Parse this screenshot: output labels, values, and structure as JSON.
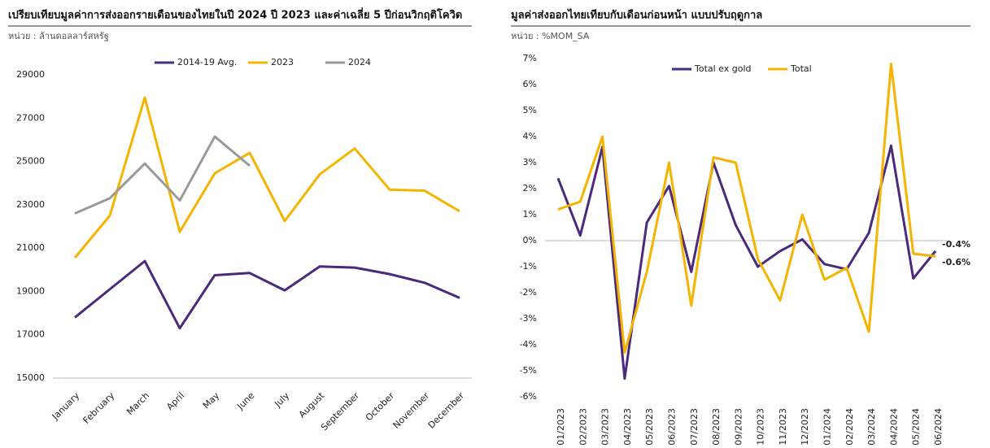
{
  "chart_data": [
    {
      "type": "line",
      "title": "เปรียบเทียบมูลค่าการส่งออกรายเดือนของไทยในปี  2024 ปี 2023 และค่าเฉลี่ย 5 ปีก่อนวิกฤติโควิด",
      "subtitle": "หน่วย : ล้านดอลลาร์สหรัฐ",
      "categories": [
        "January",
        "February",
        "March",
        "April",
        "May",
        "June",
        "July",
        "August",
        "September",
        "October",
        "November",
        "December"
      ],
      "series": [
        {
          "name": "2014-19 Avg.",
          "color": "#4b2a7b",
          "values": [
            17800,
            19100,
            20400,
            17300,
            19750,
            19850,
            19050,
            20150,
            20100,
            19800,
            19400,
            18700
          ]
        },
        {
          "name": "2023",
          "color": "#f5b400",
          "values": [
            20550,
            22500,
            27950,
            21750,
            24450,
            25400,
            22250,
            24400,
            25600,
            23700,
            23650,
            22700
          ]
        },
        {
          "name": "2024",
          "color": "#9a9a9a",
          "values": [
            22600,
            23300,
            24900,
            23200,
            26150,
            24800,
            null,
            null,
            null,
            null,
            null,
            null
          ]
        }
      ],
      "ylim": [
        15000,
        29000
      ],
      "yticks": [
        15000,
        17000,
        19000,
        21000,
        23000,
        25000,
        27000,
        29000
      ],
      "legend": "top"
    },
    {
      "type": "line",
      "title": "มูลค่าส่งออกไทยเทียบกับเดือนก่อนหน้า แบบปรับฤดูกาล",
      "subtitle": "หน่วย : %MOM_SA",
      "categories": [
        "01/2023",
        "02/2023",
        "03/2023",
        "04/2023",
        "05/2023",
        "06/2023",
        "07/2023",
        "08/2023",
        "09/2023",
        "10/2023",
        "11/2023",
        "12/2023",
        "01/2024",
        "02/2024",
        "03/2024",
        "04/2024",
        "05/2024",
        "06/2024"
      ],
      "series": [
        {
          "name": "Total ex gold",
          "color": "#4b2a7b",
          "values": [
            2.4,
            0.2,
            3.6,
            -5.3,
            0.7,
            2.1,
            -1.2,
            3.0,
            0.6,
            -1.0,
            -0.4,
            0.05,
            -0.9,
            -1.1,
            0.3,
            3.65,
            -1.45,
            -0.4
          ],
          "value_labels": [
            null,
            null,
            null,
            null,
            null,
            null,
            null,
            null,
            null,
            null,
            null,
            null,
            null,
            null,
            null,
            null,
            null,
            "-0.4%"
          ]
        },
        {
          "name": "Total",
          "color": "#f5b400",
          "values": [
            1.2,
            1.5,
            4.0,
            -4.3,
            -1.2,
            3.0,
            -2.5,
            3.2,
            3.0,
            -0.7,
            -2.3,
            1.0,
            -1.5,
            -1.05,
            -3.5,
            6.8,
            -0.5,
            -0.6
          ],
          "value_labels": [
            null,
            null,
            null,
            null,
            null,
            null,
            null,
            null,
            null,
            null,
            null,
            null,
            null,
            null,
            null,
            null,
            null,
            "-0.6%"
          ]
        }
      ],
      "ylim": [
        -6,
        7
      ],
      "yticks": [
        {
          "value": -6,
          "label": "-6%"
        },
        {
          "value": -5,
          "label": "-5%"
        },
        {
          "value": -4,
          "label": "-4%"
        },
        {
          "value": -3,
          "label": "-3%"
        },
        {
          "value": -2,
          "label": "-2%"
        },
        {
          "value": -1,
          "label": "-1%"
        },
        {
          "value": 0,
          "label": "0%"
        },
        {
          "value": 1,
          "label": "1%"
        },
        {
          "value": 2,
          "label": "2%"
        },
        {
          "value": 3,
          "label": "3%"
        },
        {
          "value": 4,
          "label": "4%"
        },
        {
          "value": 5,
          "label": "5%"
        },
        {
          "value": 6,
          "label": "6%"
        },
        {
          "value": 7,
          "label": "7%"
        }
      ],
      "legend": "top"
    }
  ]
}
